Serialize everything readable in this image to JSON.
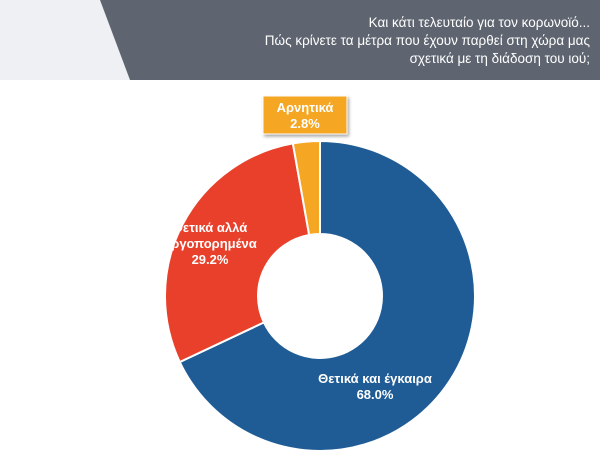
{
  "title": {
    "line1": "Και κάτι τελευταίο για τον κορωνοϊό...",
    "line2": "Πώς κρίνετε τα μέτρα που έχουν παρθεί στη χώρα μας",
    "line3": "σχετικά με τη διάδοση του ιού;"
  },
  "chart_data": {
    "type": "pie",
    "donut": true,
    "slices": [
      {
        "label": "Θετικά και έγκαιρα",
        "value_text": "68.0%",
        "value": 68.0,
        "color": "#1f5c95"
      },
      {
        "label": "Θετικά αλλά αργοπορημένα",
        "value_text": "29.2%",
        "value": 29.2,
        "color": "#e8402a"
      },
      {
        "label": "Αρνητικά",
        "value_text": "2.8%",
        "value": 2.8,
        "color": "#f5a623"
      }
    ]
  }
}
